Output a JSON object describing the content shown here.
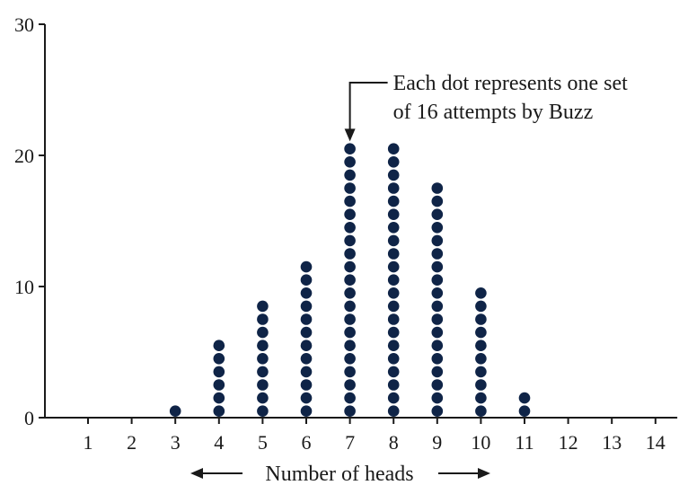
{
  "chart_data": {
    "type": "scatter",
    "subtype": "dot-plot",
    "title": "",
    "xlabel": "Number of heads",
    "ylabel": "",
    "x_ticks": [
      1,
      2,
      3,
      4,
      5,
      6,
      7,
      8,
      9,
      10,
      11,
      12,
      13,
      14
    ],
    "y_ticks": [
      0,
      10,
      20,
      30
    ],
    "xlim": [
      0,
      14.5
    ],
    "ylim": [
      0,
      30
    ],
    "grid": false,
    "legend": "none",
    "dot_color": "#0f2447",
    "series": [
      {
        "x": [
          3,
          4,
          5,
          6,
          7,
          8,
          9,
          10,
          11
        ],
        "values": [
          1,
          6,
          9,
          12,
          21,
          21,
          18,
          10,
          2
        ]
      }
    ],
    "annotation": {
      "lines": [
        "Each dot represents one set",
        "of 16 attempts by Buzz"
      ],
      "points_to_x": 7
    }
  }
}
